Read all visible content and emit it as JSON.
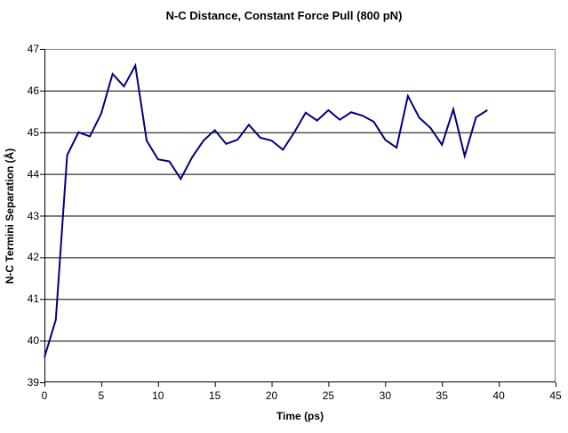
{
  "chart_data": {
    "type": "line",
    "title": "N-C Distance, Constant Force Pull (800 pN)",
    "xlabel": "Time (ps)",
    "ylabel": "N-C Termini Separation (Å)",
    "xlim": [
      0,
      45
    ],
    "ylim": [
      39,
      47
    ],
    "x_ticks": [
      0,
      5,
      10,
      15,
      20,
      25,
      30,
      35,
      40,
      45
    ],
    "y_ticks": [
      39,
      40,
      41,
      42,
      43,
      44,
      45,
      46,
      47
    ],
    "grid": "horizontal-y-on",
    "legend": "none",
    "colors": {
      "line": "#000080",
      "gridline": "#000000",
      "axis": "#000000",
      "plot_border": "#808080",
      "background": "#ffffff",
      "text": "#000000"
    },
    "series": [
      {
        "name": "N-C termini separation",
        "x": [
          0,
          1,
          2,
          3,
          4,
          5,
          6,
          7,
          8,
          9,
          10,
          11,
          12,
          13,
          14,
          15,
          16,
          17,
          18,
          19,
          20,
          21,
          22,
          23,
          24,
          25,
          26,
          27,
          28,
          29,
          30,
          31,
          32,
          33,
          34,
          35,
          36,
          37,
          38,
          39
        ],
        "values": [
          39.6,
          40.5,
          44.45,
          45.0,
          44.9,
          45.45,
          46.4,
          46.1,
          46.6,
          44.8,
          44.35,
          44.3,
          43.88,
          44.4,
          44.8,
          45.05,
          44.72,
          44.82,
          45.18,
          44.87,
          44.8,
          44.58,
          45.0,
          45.47,
          45.28,
          45.53,
          45.3,
          45.48,
          45.4,
          45.25,
          44.82,
          44.63,
          45.87,
          45.35,
          45.1,
          44.7,
          45.55,
          44.43,
          45.36,
          45.53
        ]
      }
    ]
  }
}
